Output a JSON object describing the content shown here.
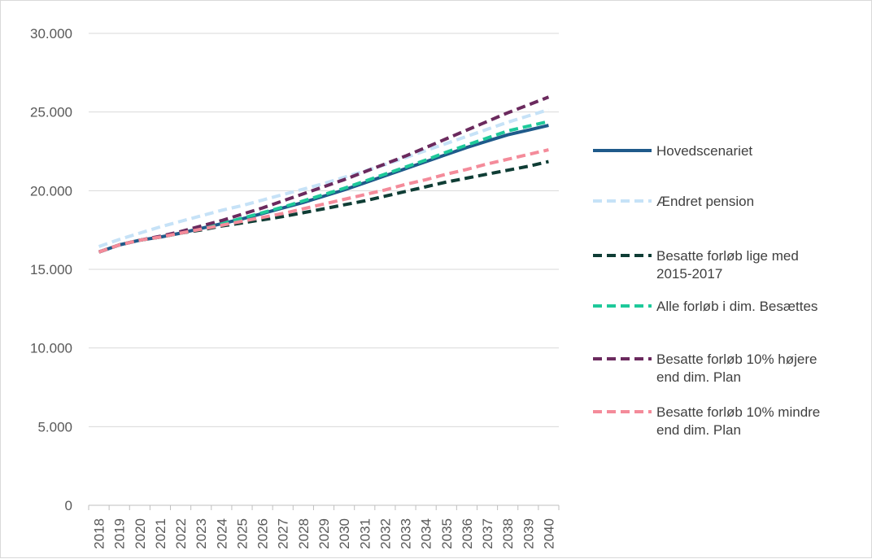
{
  "chart_data": {
    "type": "line",
    "title": "",
    "xlabel": "",
    "ylabel": "",
    "ylim": [
      0,
      30000
    ],
    "y_ticks": [
      0,
      5000,
      10000,
      15000,
      20000,
      25000,
      30000
    ],
    "y_tick_labels": [
      "0",
      "5.000",
      "10.000",
      "15.000",
      "20.000",
      "25.000",
      "30.000"
    ],
    "grid": "horizontal",
    "legend_position": "right",
    "x": [
      "2018",
      "2019",
      "2020",
      "2021",
      "2022",
      "2023",
      "2024",
      "2025",
      "2026",
      "2027",
      "2028",
      "2029",
      "2030",
      "2031",
      "2032",
      "2033",
      "2034",
      "2035",
      "2036",
      "2037",
      "2038",
      "2039",
      "2040"
    ],
    "series": [
      {
        "name": "Hovedscenariet",
        "legend_lines": [
          "Hovedscenariet"
        ],
        "color": "#1f5a8a",
        "style": "solid",
        "values": [
          16100,
          16550,
          16850,
          17050,
          17300,
          17600,
          17900,
          18200,
          18550,
          18900,
          19250,
          19650,
          20050,
          20500,
          20950,
          21400,
          21850,
          22300,
          22750,
          23150,
          23550,
          23850,
          24150
        ]
      },
      {
        "name": "Ændret pension",
        "legend_lines": [
          "Ændret pension"
        ],
        "color": "#c6e2f7",
        "style": "dashed",
        "values": [
          16450,
          16900,
          17300,
          17700,
          18050,
          18400,
          18750,
          19050,
          19400,
          19750,
          20100,
          20450,
          20850,
          21250,
          21650,
          22100,
          22550,
          23000,
          23450,
          23900,
          24350,
          24750,
          25150
        ]
      },
      {
        "name": "Besatte forløb lige med 2015-2017",
        "legend_lines": [
          "Besatte forløb lige med",
          "2015-2017"
        ],
        "color": "#0f3d35",
        "style": "dashed",
        "values": [
          16100,
          16550,
          16850,
          17050,
          17300,
          17500,
          17750,
          17950,
          18150,
          18350,
          18600,
          18850,
          19100,
          19350,
          19650,
          19950,
          20250,
          20550,
          20800,
          21050,
          21300,
          21550,
          21850
        ]
      },
      {
        "name": "Alle forløb i dim. Besættes",
        "legend_lines": [
          "Alle forløb i dim. Besættes"
        ],
        "color": "#1ec99a",
        "style": "dashed",
        "values": [
          16100,
          16550,
          16850,
          17050,
          17300,
          17600,
          17900,
          18250,
          18600,
          18950,
          19350,
          19750,
          20150,
          20600,
          21050,
          21500,
          21950,
          22450,
          22900,
          23350,
          23800,
          24100,
          24400
        ]
      },
      {
        "name": "Besatte forløb 10% højere end dim. Plan",
        "legend_lines": [
          "Besatte forløb 10% højere",
          "end dim. Plan"
        ],
        "color": "#6b2a5e",
        "style": "dashed",
        "values": [
          16100,
          16550,
          16850,
          17100,
          17400,
          17750,
          18100,
          18500,
          18900,
          19350,
          19800,
          20250,
          20700,
          21200,
          21700,
          22200,
          22750,
          23300,
          23850,
          24400,
          24950,
          25450,
          25950
        ]
      },
      {
        "name": "Besatte forløb 10% mindre end dim. Plan",
        "legend_lines": [
          "Besatte forløb 10% mindre",
          "end dim. Plan"
        ],
        "color": "#f48b9a",
        "style": "dashed",
        "values": [
          16100,
          16550,
          16850,
          17050,
          17300,
          17550,
          17800,
          18050,
          18300,
          18550,
          18850,
          19150,
          19450,
          19750,
          20050,
          20400,
          20700,
          21050,
          21350,
          21700,
          22000,
          22300,
          22600
        ]
      }
    ]
  }
}
